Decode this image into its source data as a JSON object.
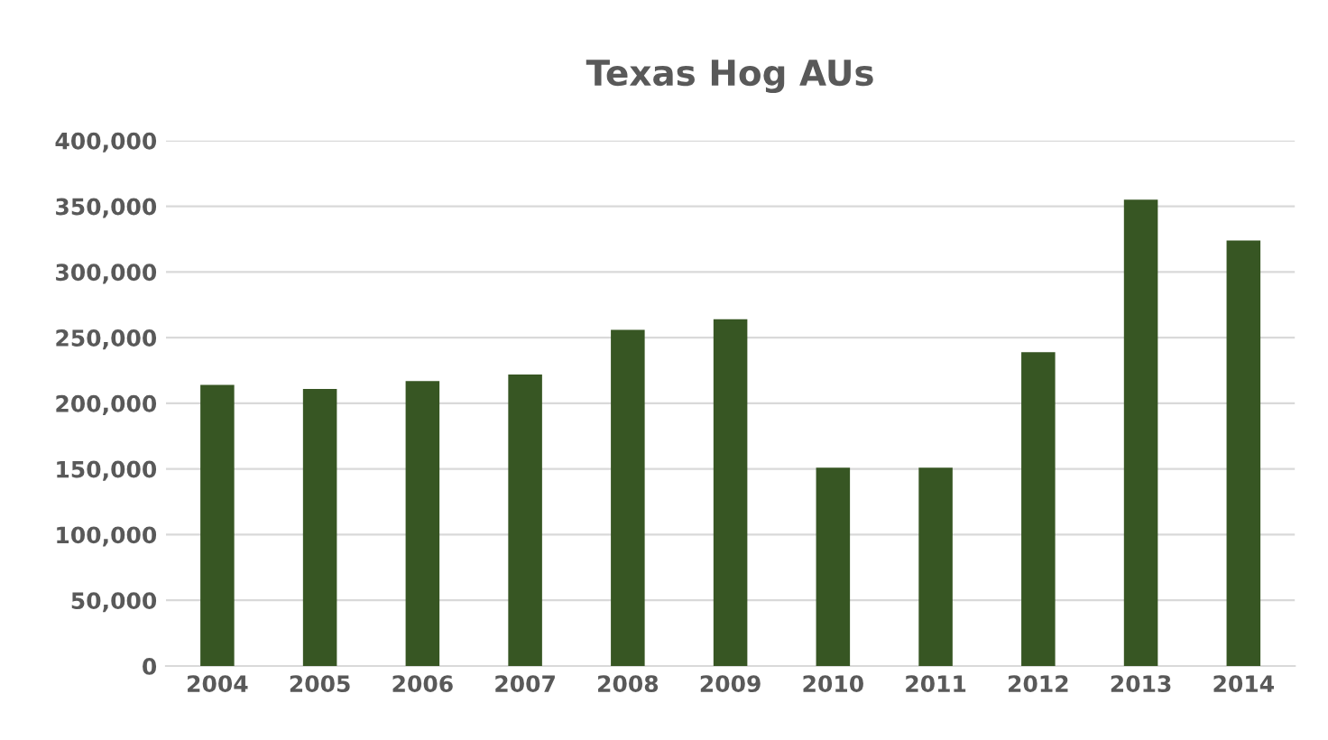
{
  "chart_data": {
    "type": "bar",
    "title": "Texas Hog AUs",
    "categories": [
      "2004",
      "2005",
      "2006",
      "2007",
      "2008",
      "2009",
      "2010",
      "2011",
      "2012",
      "2013",
      "2014"
    ],
    "values": [
      214000,
      211000,
      217000,
      222000,
      256000,
      264000,
      151000,
      151000,
      239000,
      355000,
      324000
    ],
    "color": "#375623",
    "ylim": [
      0,
      400000
    ],
    "yticks": [
      {
        "value": 0,
        "label": "0"
      },
      {
        "value": 50000,
        "label": "50,000"
      },
      {
        "value": 100000,
        "label": "100,000"
      },
      {
        "value": 150000,
        "label": "150,000"
      },
      {
        "value": 200000,
        "label": "200,000"
      },
      {
        "value": 250000,
        "label": "250,000"
      },
      {
        "value": 300000,
        "label": "300,000"
      },
      {
        "value": 350000,
        "label": "350,000"
      },
      {
        "value": 400000,
        "label": "400,000"
      }
    ],
    "grid": "y",
    "legend": false
  }
}
